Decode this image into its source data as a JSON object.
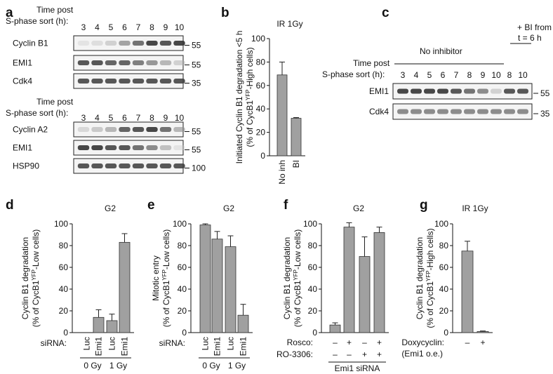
{
  "panels": {
    "a": {
      "label": "a",
      "blot1": {
        "header1": "Time post",
        "header2": "S-phase sort (h):",
        "lanes": [
          "3",
          "4",
          "5",
          "6",
          "7",
          "8",
          "9",
          "10"
        ],
        "rows": [
          {
            "name": "Cyclin B1",
            "mw": "55",
            "intensity": [
              0.1,
              0.15,
              0.25,
              0.5,
              0.7,
              0.85,
              0.8,
              0.85
            ]
          },
          {
            "name": "EMI1",
            "mw": "55",
            "intensity": [
              0.8,
              0.8,
              0.75,
              0.75,
              0.65,
              0.55,
              0.4,
              0.25
            ]
          },
          {
            "name": "Cdk4",
            "mw": "35",
            "intensity": [
              0.8,
              0.8,
              0.8,
              0.8,
              0.8,
              0.8,
              0.8,
              0.8
            ]
          }
        ]
      },
      "blot2": {
        "header1": "Time post",
        "header2": "S-phase sort (h):",
        "lanes": [
          "3",
          "4",
          "5",
          "6",
          "7",
          "8",
          "9",
          "10"
        ],
        "rows": [
          {
            "name": "Cyclin A2",
            "mw": "55",
            "intensity": [
              0.2,
              0.3,
              0.4,
              0.75,
              0.8,
              0.85,
              0.7,
              0.4
            ]
          },
          {
            "name": "EMI1",
            "mw": "55",
            "intensity": [
              0.85,
              0.85,
              0.8,
              0.8,
              0.7,
              0.6,
              0.35,
              0.1
            ]
          },
          {
            "name": "HSP90",
            "mw": "100",
            "intensity": [
              0.8,
              0.8,
              0.8,
              0.8,
              0.8,
              0.8,
              0.8,
              0.8
            ]
          }
        ]
      }
    },
    "c": {
      "label": "c",
      "header1": "Time post",
      "header2": "S-phase sort (h):",
      "group1": "No inhibitor",
      "group2_line1": "+ BI from",
      "group2_line2": "t = 6 h",
      "lanes": [
        "3",
        "4",
        "5",
        "6",
        "7",
        "8",
        "9",
        "10",
        "8",
        "10"
      ],
      "rows": [
        {
          "name": "EMI1",
          "mw": "55",
          "intensity": [
            0.85,
            0.85,
            0.85,
            0.85,
            0.8,
            0.7,
            0.6,
            0.25,
            0.8,
            0.8
          ]
        },
        {
          "name": "Cdk4",
          "mw": "35",
          "intensity": [
            0.6,
            0.6,
            0.6,
            0.6,
            0.6,
            0.6,
            0.6,
            0.6,
            0.6,
            0.6
          ]
        }
      ]
    }
  },
  "chart_data": [
    {
      "id": "b",
      "label": "b",
      "type": "bar",
      "title": "IR 1Gy",
      "ylabel": "Initiated Cyclin B1 degradation <5 h",
      "ylabel2_pre": "(% of CycB1",
      "ylabel2_sup": "YFP",
      "ylabel2_post": "-High cells)",
      "ylim": [
        0,
        100
      ],
      "yticks": [
        "0",
        "20",
        "40",
        "60",
        "80",
        "100"
      ],
      "categories": [
        "No inh",
        "BI"
      ],
      "values": [
        69,
        32
      ],
      "errors": [
        11,
        0.6
      ]
    },
    {
      "id": "d",
      "label": "d",
      "type": "bar",
      "title": "G2",
      "ylabel": "Cyclin B1 degradation",
      "ylabel2_pre": "(% of CycB1",
      "ylabel2_sup": "YFP",
      "ylabel2_post": "-Low cells)",
      "ylim": [
        0,
        100
      ],
      "yticks": [
        "0",
        "20",
        "40",
        "60",
        "80",
        "100"
      ],
      "row_label": "siRNA:",
      "categories": [
        "Luc",
        "Emi1",
        "Luc",
        "Emi1"
      ],
      "values": [
        0,
        14,
        11,
        83
      ],
      "errors": [
        0,
        7,
        6,
        8
      ],
      "groups": [
        "0 Gy",
        "1 Gy"
      ]
    },
    {
      "id": "e",
      "label": "e",
      "type": "bar",
      "title": "G2",
      "ylabel": "Mitotic entry",
      "ylabel2_pre": "(% of CycB1",
      "ylabel2_sup": "YFP",
      "ylabel2_post": "-Low cells)",
      "ylim": [
        0,
        100
      ],
      "yticks": [
        "0",
        "20",
        "40",
        "60",
        "80",
        "100"
      ],
      "row_label": "siRNA:",
      "categories": [
        "Luc",
        "Emi1",
        "Luc",
        "Emi1"
      ],
      "values": [
        99,
        86,
        79,
        16
      ],
      "errors": [
        1,
        7,
        10,
        10
      ],
      "groups": [
        "0 Gy",
        "1 Gy"
      ]
    },
    {
      "id": "f",
      "label": "f",
      "type": "bar",
      "title": "G2",
      "ylabel": "Cyclin B1 degradation",
      "ylabel2_pre": "(% of CycB1",
      "ylabel2_sup": "YFP",
      "ylabel2_post": "-Low cells)",
      "ylim": [
        0,
        100
      ],
      "yticks": [
        "0",
        "20",
        "40",
        "60",
        "80",
        "100"
      ],
      "rows": [
        {
          "label": "Rosco:",
          "signs": [
            "–",
            "+",
            "–",
            "+"
          ]
        },
        {
          "label": "RO-3306:",
          "signs": [
            "–",
            "–",
            "+",
            "+"
          ]
        }
      ],
      "values": [
        7,
        97,
        70,
        92
      ],
      "errors": [
        2,
        4,
        18,
        5
      ],
      "group": "Emi1 siRNA"
    },
    {
      "id": "g",
      "label": "g",
      "type": "bar",
      "title": "IR 1Gy",
      "ylabel": "Cyclin B1 degradation",
      "ylabel2_pre": "(% of CycB1",
      "ylabel2_sup": "YFP",
      "ylabel2_post": "-High cells)",
      "ylim": [
        0,
        100
      ],
      "yticks": [
        "0",
        "20",
        "40",
        "60",
        "80",
        "100"
      ],
      "row_label": "Doxycyclin:",
      "row_label2": "(Emi1 o.e.)",
      "signs": [
        "–",
        "+"
      ],
      "values": [
        75,
        1
      ],
      "errors": [
        9,
        0.5
      ]
    }
  ]
}
